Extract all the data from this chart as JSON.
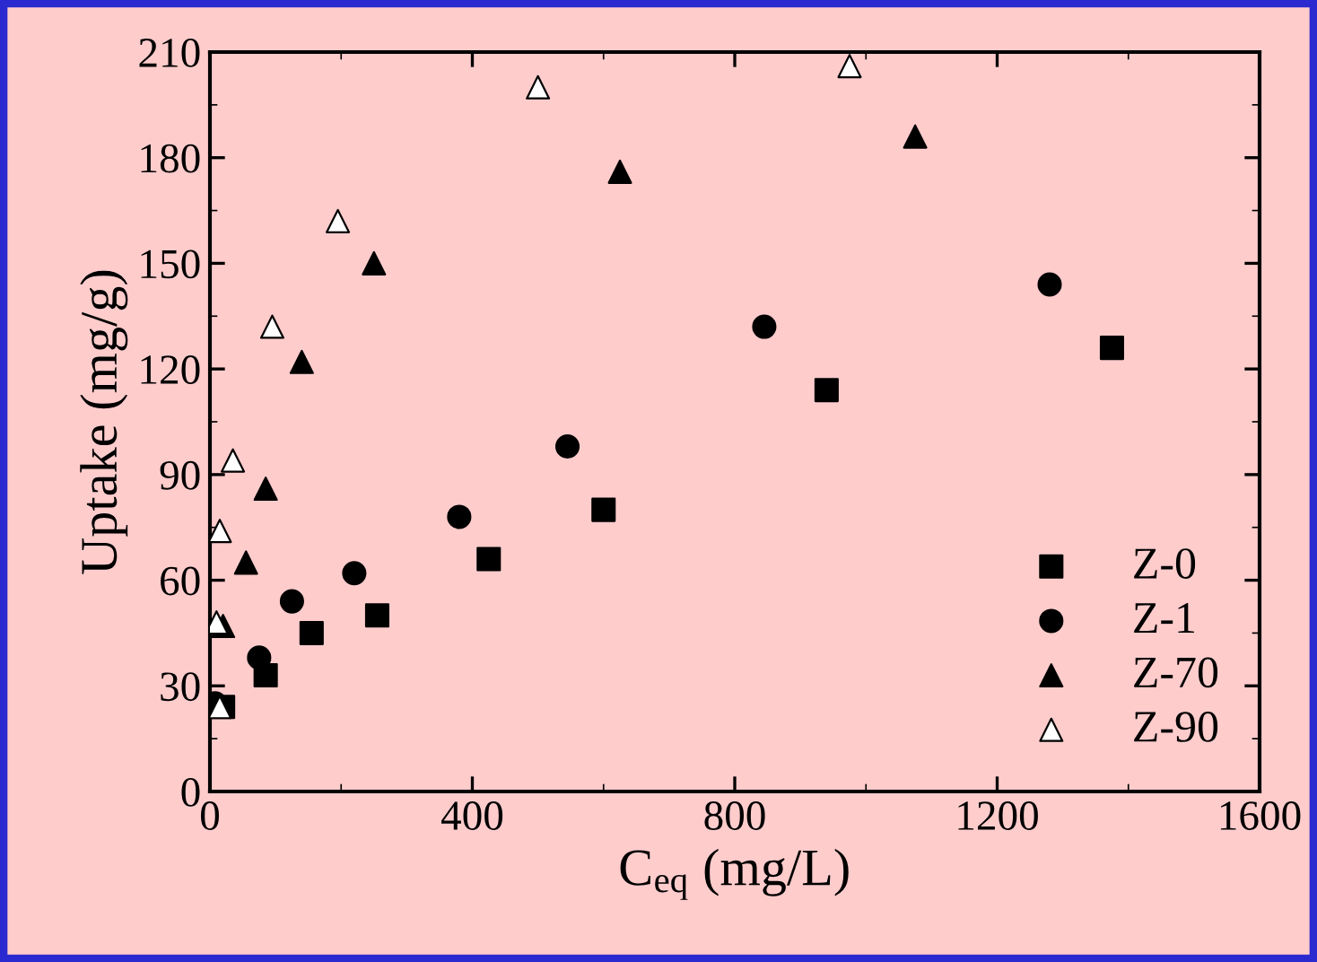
{
  "chart_data": {
    "type": "scatter",
    "xlabel": "C$_{eq}$ (mg/L)",
    "ylabel": "Uptake (mg/g)",
    "xlim": [
      0,
      1600
    ],
    "xticks": [
      0,
      400,
      800,
      1200,
      1600
    ],
    "ylim": [
      0,
      210
    ],
    "yticks": [
      0,
      30,
      60,
      90,
      120,
      150,
      180,
      210
    ],
    "grid": false,
    "legend": "bottom right",
    "series": [
      {
        "name": "Z-0",
        "color": "#000000",
        "marker": "square",
        "x": [
          20,
          85,
          155,
          255,
          425,
          600,
          940,
          1375
        ],
        "values": [
          24,
          33,
          45,
          50,
          66,
          80,
          114,
          126
        ]
      },
      {
        "name": "Z-1",
        "color": "#000000",
        "marker": "circle",
        "x": [
          8,
          75,
          125,
          220,
          380,
          545,
          845,
          1280
        ],
        "values": [
          25,
          38,
          54,
          62,
          78,
          98,
          132,
          144
        ]
      },
      {
        "name": "Z-70",
        "color": "#000000",
        "marker": "triangle",
        "x": [
          20,
          55,
          85,
          140,
          250,
          625,
          1075
        ],
        "values": [
          47,
          65,
          86,
          122,
          150,
          176,
          186
        ]
      },
      {
        "name": "Z-90",
        "color": "#ffffff",
        "marker": "triangle",
        "x": [
          15,
          10,
          15,
          35,
          95,
          195,
          500,
          975
        ],
        "values": [
          24,
          48,
          74,
          94,
          132,
          162,
          200,
          206
        ]
      }
    ]
  }
}
